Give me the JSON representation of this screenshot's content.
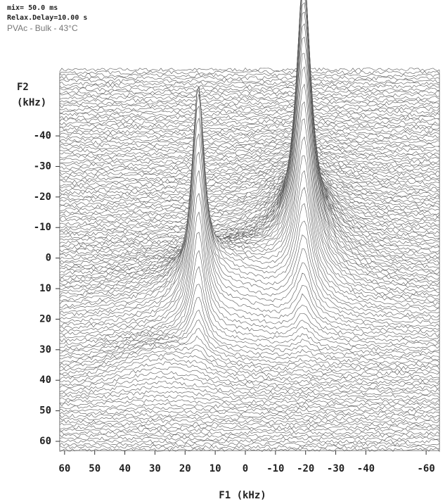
{
  "chart_data": {
    "type": "stacked-surface",
    "header": [
      "mix=  50.0 ms",
      "Relax.Delay=10.00 s"
    ],
    "subtitle": "PVAc - Bulk - 43°C",
    "xlabel": "F1  (kHz)",
    "ylabel": [
      "F2",
      "(kHz)"
    ],
    "xlim": [
      61.6,
      -64.4
    ],
    "xticks": [
      60,
      50,
      40,
      30,
      20,
      10,
      0,
      -10,
      -20,
      -30,
      -40,
      -60
    ],
    "ylim": [
      -62.6,
      63
    ],
    "yticks": [
      -40,
      -30,
      -20,
      -10,
      0,
      10,
      20,
      30,
      40,
      50,
      60
    ]
  }
}
